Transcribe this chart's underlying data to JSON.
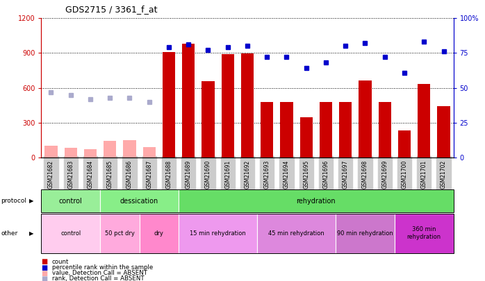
{
  "title": "GDS2715 / 3361_f_at",
  "samples": [
    "GSM21682",
    "GSM21683",
    "GSM21684",
    "GSM21685",
    "GSM21686",
    "GSM21687",
    "GSM21688",
    "GSM21689",
    "GSM21690",
    "GSM21691",
    "GSM21692",
    "GSM21693",
    "GSM21694",
    "GSM21695",
    "GSM21696",
    "GSM21697",
    "GSM21698",
    "GSM21699",
    "GSM21700",
    "GSM21701",
    "GSM21702"
  ],
  "count_values": [
    100,
    85,
    70,
    145,
    150,
    90,
    910,
    980,
    660,
    890,
    895,
    480,
    480,
    345,
    480,
    480,
    665,
    480,
    235,
    635,
    440
  ],
  "absent_count": [
    true,
    true,
    true,
    true,
    true,
    true,
    false,
    false,
    false,
    false,
    false,
    false,
    false,
    false,
    false,
    false,
    false,
    false,
    false,
    false,
    false
  ],
  "percentile_values": [
    47,
    45,
    42,
    43,
    43,
    40,
    79,
    81,
    77,
    79,
    80,
    72,
    72,
    64,
    68,
    80,
    82,
    72,
    61,
    83,
    76
  ],
  "absent_percentile": [
    true,
    true,
    true,
    true,
    true,
    true,
    false,
    false,
    false,
    false,
    false,
    false,
    false,
    false,
    false,
    false,
    false,
    false,
    false,
    false,
    false
  ],
  "ylim_left": [
    0,
    1200
  ],
  "ylim_right": [
    0,
    100
  ],
  "bar_color_present": "#cc0000",
  "bar_color_absent": "#ffaaaa",
  "dot_color_present": "#0000cc",
  "dot_color_absent": "#aaaacc",
  "protocol_bands": [
    {
      "label": "control",
      "start": 0,
      "end": 3,
      "color": "#99ee99"
    },
    {
      "label": "dessication",
      "start": 3,
      "end": 7,
      "color": "#88ee88"
    },
    {
      "label": "rehydration",
      "start": 7,
      "end": 21,
      "color": "#66dd66"
    }
  ],
  "other_bands": [
    {
      "label": "control",
      "start": 0,
      "end": 3,
      "color": "#ffccee"
    },
    {
      "label": "50 pct dry",
      "start": 3,
      "end": 5,
      "color": "#ffaadd"
    },
    {
      "label": "dry",
      "start": 5,
      "end": 7,
      "color": "#ff88cc"
    },
    {
      "label": "15 min rehydration",
      "start": 7,
      "end": 11,
      "color": "#ee99ee"
    },
    {
      "label": "45 min rehydration",
      "start": 11,
      "end": 15,
      "color": "#dd88dd"
    },
    {
      "label": "90 min rehydration",
      "start": 15,
      "end": 18,
      "color": "#cc77cc"
    },
    {
      "label": "360 min\nrehydration",
      "start": 18,
      "end": 21,
      "color": "#cc33cc"
    }
  ],
  "background_color": "#ffffff",
  "left_axis_color": "#cc0000",
  "right_axis_color": "#0000cc",
  "xticklabel_bg": "#cccccc"
}
